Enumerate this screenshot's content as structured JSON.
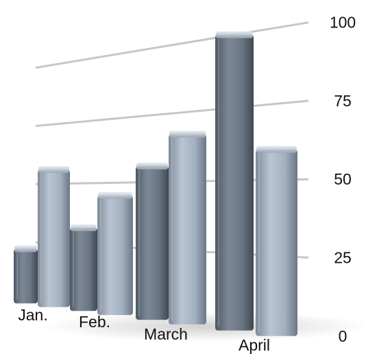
{
  "chart_data": {
    "type": "bar",
    "categories": [
      "Jan.",
      "Feb.",
      "March",
      "April"
    ],
    "series": [
      {
        "values": [
          22,
          32,
          56,
          100
        ]
      },
      {
        "values": [
          56,
          45,
          67,
          60
        ]
      }
    ],
    "ylim": [
      0,
      100
    ],
    "yticks": [
      "0",
      "25",
      "50",
      "75",
      "100"
    ],
    "grid": true,
    "legend": "none",
    "colors": {
      "series_dark": "#6d7986",
      "series_light": "#9eabba",
      "grid": "#c6c6c6"
    }
  }
}
